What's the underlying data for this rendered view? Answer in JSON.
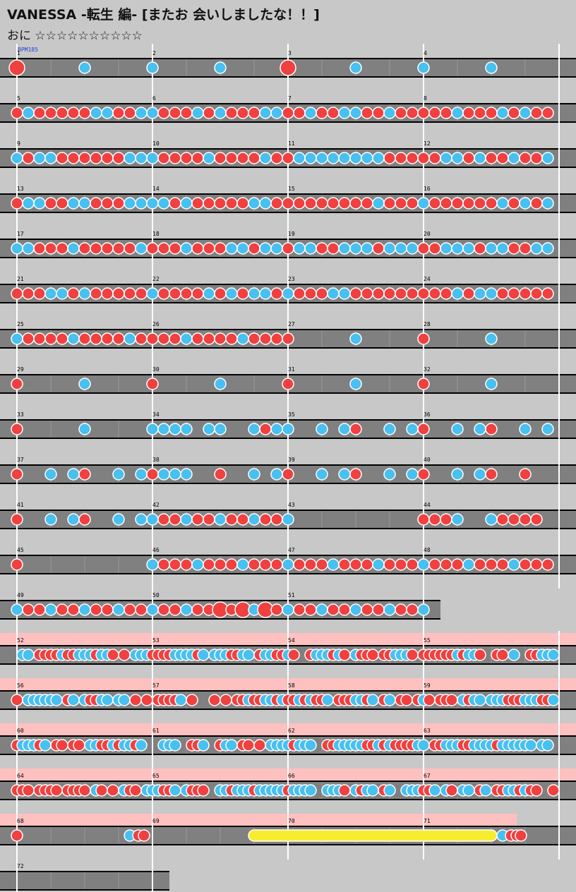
{
  "header": {
    "title": "VANESSA  -転生 編- [またお 会いしましたな！！]",
    "course": "おに",
    "stars": "☆☆☆☆☆☆☆☆☆☆",
    "bpm": "BPM185"
  },
  "colors": {
    "background": "#c8c8c8",
    "lane": "#808080",
    "don": "#f04040",
    "ka": "#48c0f0",
    "drumroll": "#f8ec30",
    "gogo": "#ffc0c0"
  },
  "rows": [
    {
      "bars": [
        1,
        2,
        3,
        4
      ],
      "notes": "Rk..b..b..b..Rk..b..b..b..",
      "note_unit": "quarter"
    },
    {
      "bars": [
        5,
        6,
        7,
        8
      ],
      "pattern": "kddkdkddkdddkddkkddkdddkdkkdddkdkdkddddddRRRRRR",
      "fill": "mixed-sixteenth"
    },
    {
      "bars": [
        9,
        10,
        11,
        12
      ],
      "pattern": "K........dddkkdkddkkdddkdkkdkdkdkddddkdkddkdkdk"
    },
    {
      "bars": [
        13,
        14,
        15,
        16
      ]
    },
    {
      "bars": [
        17,
        18,
        19,
        20
      ]
    },
    {
      "bars": [
        21,
        22,
        23,
        24
      ]
    },
    {
      "bars": [
        25,
        26,
        27,
        28
      ]
    },
    {
      "bars": [
        29,
        30,
        31,
        32
      ]
    },
    {
      "bars": [
        33,
        34,
        35,
        36
      ]
    },
    {
      "bars": [
        37,
        38,
        39,
        40
      ]
    },
    {
      "bars": [
        41,
        42,
        43,
        44
      ]
    },
    {
      "bars": [
        45,
        46,
        47,
        48
      ]
    },
    {
      "bars": [
        49,
        50,
        51
      ]
    },
    {
      "bars": [
        52,
        53,
        54,
        55
      ],
      "gogo": true
    },
    {
      "bars": [
        56,
        57,
        58,
        59
      ],
      "gogo": true
    },
    {
      "bars": [
        60,
        61,
        62,
        63
      ],
      "gogo": true
    },
    {
      "bars": [
        64,
        65,
        66,
        67
      ],
      "gogo": true
    },
    {
      "bars": [
        68,
        69,
        70,
        71
      ],
      "gogo": true
    },
    {
      "bars": [
        72
      ]
    }
  ]
}
